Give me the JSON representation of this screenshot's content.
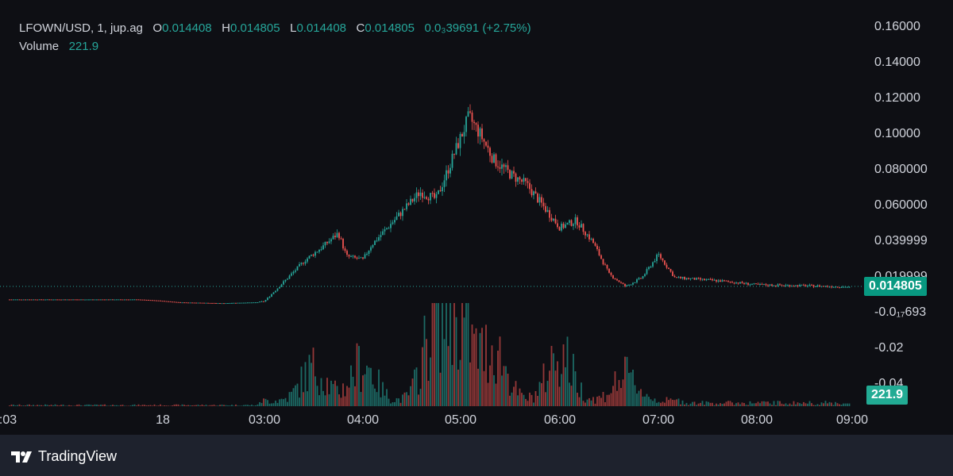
{
  "legend": {
    "symbol": "LFOWN/USD, 1, jup.ag",
    "o_key": "O",
    "o_val": "0.014408",
    "h_key": "H",
    "h_val": "0.014805",
    "l_key": "L",
    "l_val": "0.014408",
    "c_key": "C",
    "c_val": "0.014805",
    "change": "0.0₃39691 (+2.75%)",
    "volume_key": "Volume",
    "volume_val": "221.9"
  },
  "price_axis": {
    "labels": [
      "0.16000",
      "0.14000",
      "0.12000",
      "0.10000",
      "0.080000",
      "0.060000",
      "0.039999",
      "0.019999",
      "-0.0₁₇693",
      "-0.02",
      "-0.04"
    ],
    "last_price": "0.014805",
    "last_volume": "221.9"
  },
  "time_axis": {
    "labels": [
      ":03",
      "18",
      "03:00",
      "04:00",
      "05:00",
      "06:00",
      "07:00",
      "08:00",
      "09:00"
    ]
  },
  "colors": {
    "up": "#26a69a",
    "down": "#ef5350",
    "background": "#0e0f14",
    "frame": "#1e222d",
    "text": "#d1d4dc"
  },
  "branding": {
    "logo_text": "TradingView"
  },
  "chart_data": {
    "type": "candlestick",
    "symbol": "LFOWN/USD",
    "interval": "1",
    "x_ticks": [
      ":03",
      "18",
      "03:00",
      "04:00",
      "05:00",
      "06:00",
      "07:00",
      "08:00",
      "09:00"
    ],
    "y_range": [
      -0.045,
      0.165
    ],
    "last_price": 0.014805,
    "last_volume": 221.9,
    "price_path": [
      [
        "00:03",
        0.0078
      ],
      [
        "00:30",
        0.0072
      ],
      [
        "01:00",
        0.0062
      ],
      [
        "02:00",
        0.0057
      ],
      [
        "02:50",
        0.0062
      ],
      [
        "03:00",
        0.0068
      ],
      [
        "03:10",
        0.016
      ],
      [
        "03:25",
        0.03
      ],
      [
        "03:35",
        0.037
      ],
      [
        "03:45",
        0.045
      ],
      [
        "03:50",
        0.032
      ],
      [
        "04:00",
        0.03
      ],
      [
        "04:05",
        0.038
      ],
      [
        "04:15",
        0.048
      ],
      [
        "04:25",
        0.058
      ],
      [
        "04:35",
        0.068
      ],
      [
        "04:45",
        0.064
      ],
      [
        "04:52",
        0.08
      ],
      [
        "04:58",
        0.094
      ],
      [
        "05:05",
        0.11
      ],
      [
        "05:12",
        0.1
      ],
      [
        "05:20",
        0.086
      ],
      [
        "05:30",
        0.078
      ],
      [
        "05:40",
        0.072
      ],
      [
        "05:50",
        0.06
      ],
      [
        "06:00",
        0.048
      ],
      [
        "06:10",
        0.052
      ],
      [
        "06:20",
        0.04
      ],
      [
        "06:30",
        0.022
      ],
      [
        "06:40",
        0.015
      ],
      [
        "06:50",
        0.02
      ],
      [
        "07:00",
        0.033
      ],
      [
        "07:10",
        0.02
      ],
      [
        "07:40",
        0.018
      ],
      [
        "08:00",
        0.016
      ],
      [
        "08:30",
        0.0155
      ],
      [
        "09:00",
        0.0148
      ]
    ],
    "volume_peaks": [
      [
        "03:30",
        60
      ],
      [
        "04:00",
        70
      ],
      [
        "04:45",
        150
      ],
      [
        "05:00",
        130
      ],
      [
        "05:20",
        95
      ],
      [
        "06:00",
        90
      ],
      [
        "06:40",
        45
      ]
    ]
  }
}
